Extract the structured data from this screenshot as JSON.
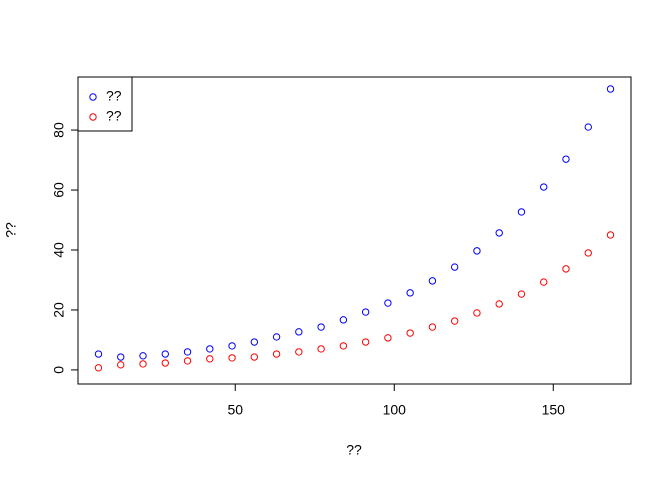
{
  "chart_data": {
    "type": "scatter",
    "x_label": "??",
    "y_label": "??",
    "x": [
      7,
      14,
      21,
      28,
      35,
      42,
      49,
      56,
      63,
      70,
      77,
      84,
      91,
      98,
      105,
      112,
      119,
      126,
      133,
      140,
      147,
      154,
      161,
      168
    ],
    "series": [
      {
        "name": "??",
        "color": "#0000ff",
        "values": [
          5.3,
          4.3,
          4.7,
          5.3,
          6,
          7,
          8,
          9.3,
          11,
          12.7,
          14.3,
          16.7,
          19.3,
          22.3,
          25.7,
          29.7,
          34.3,
          39.7,
          45.7,
          52.7,
          61,
          70.3,
          81,
          93.7
        ]
      },
      {
        "name": "??",
        "color": "#ff0000",
        "values": [
          0.7,
          1.7,
          2,
          2.3,
          3,
          3.7,
          4,
          4.3,
          5.3,
          6,
          7,
          8,
          9.3,
          10.7,
          12.3,
          14.3,
          16.3,
          19,
          22,
          25.3,
          29.3,
          33.7,
          39,
          45
        ]
      }
    ],
    "xlim": [
      0.56,
      174.44
    ],
    "xticks": [
      50,
      100,
      150
    ],
    "ylim": [
      -4.7,
      97.7
    ],
    "yticks": [
      0,
      20,
      40,
      60,
      80
    ],
    "legend": "topleft"
  }
}
